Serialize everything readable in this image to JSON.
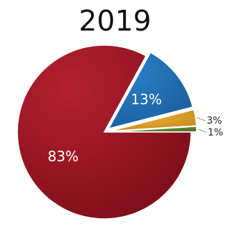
{
  "chart_data": {
    "type": "pie",
    "title": "2019",
    "slices": [
      {
        "label": "83%",
        "value": 83,
        "color": "#b52030",
        "dark": "#7d0e18",
        "exploded": false
      },
      {
        "label": "13%",
        "value": 13,
        "color": "#2b7fc6",
        "dark": "#1a5e9e",
        "exploded": true
      },
      {
        "label": "3%",
        "value": 3,
        "color": "#f0b33a",
        "dark": "#c88c1c",
        "exploded": true
      },
      {
        "label": "1%",
        "value": 1,
        "color": "#6d9a3b",
        "dark": "#4f7628",
        "exploded": true
      }
    ]
  }
}
